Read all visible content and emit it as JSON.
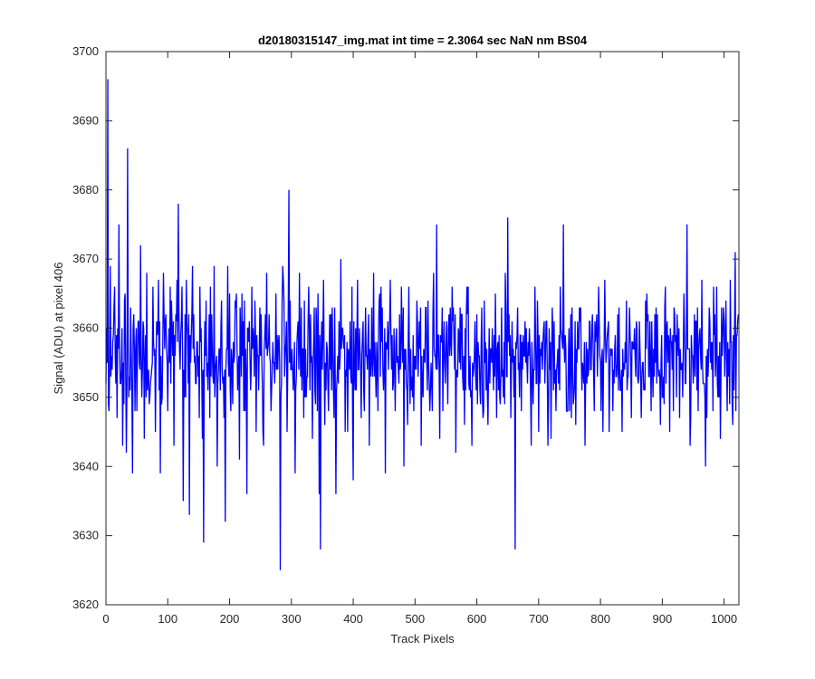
{
  "chart_data": {
    "type": "line",
    "title": "d20180315147_img.mat int time = 2.3064 sec  NaN nm BS04",
    "xlabel": "Track Pixels",
    "ylabel": "Signal (ADU) at pixel 406",
    "xlim": [
      0,
      1024
    ],
    "ylim": [
      3620,
      3700
    ],
    "xticks": [
      0,
      100,
      200,
      300,
      400,
      500,
      600,
      700,
      800,
      900,
      1000
    ],
    "yticks": [
      3620,
      3630,
      3640,
      3650,
      3660,
      3670,
      3680,
      3690,
      3700
    ],
    "grid": false,
    "box": true,
    "series": [
      {
        "color": "#0000ff",
        "n_points": 1024,
        "mean": 3656,
        "anchors": [
          [
            0,
            3652
          ],
          [
            1,
            3660
          ],
          [
            3,
            3696
          ],
          [
            5,
            3648
          ],
          [
            7,
            3669
          ],
          [
            10,
            3654
          ],
          [
            14,
            3666
          ],
          [
            18,
            3647
          ],
          [
            21,
            3675
          ],
          [
            24,
            3652
          ],
          [
            27,
            3643
          ],
          [
            30,
            3664
          ],
          [
            33,
            3642
          ],
          [
            35,
            3686
          ],
          [
            37,
            3650
          ],
          [
            40,
            3663
          ],
          [
            43,
            3639
          ],
          [
            46,
            3657
          ],
          [
            50,
            3648
          ],
          [
            56,
            3672
          ],
          [
            62,
            3644
          ],
          [
            66,
            3668
          ],
          [
            71,
            3650
          ],
          [
            76,
            3666
          ],
          [
            80,
            3645
          ],
          [
            85,
            3667
          ],
          [
            88,
            3639
          ],
          [
            93,
            3668
          ],
          [
            100,
            3648
          ],
          [
            104,
            3666
          ],
          [
            110,
            3643
          ],
          [
            114,
            3661
          ],
          [
            117,
            3678
          ],
          [
            120,
            3654
          ],
          [
            125,
            3635
          ],
          [
            130,
            3667
          ],
          [
            135,
            3633
          ],
          [
            140,
            3669
          ],
          [
            145,
            3652
          ],
          [
            152,
            3666
          ],
          [
            156,
            3644
          ],
          [
            158,
            3629
          ],
          [
            162,
            3664
          ],
          [
            168,
            3647
          ],
          [
            175,
            3669
          ],
          [
            180,
            3640
          ],
          [
            187,
            3664
          ],
          [
            193,
            3632
          ],
          [
            197,
            3669
          ],
          [
            202,
            3648
          ],
          [
            210,
            3663
          ],
          [
            216,
            3641
          ],
          [
            220,
            3665
          ],
          [
            228,
            3636
          ],
          [
            236,
            3666
          ],
          [
            243,
            3645
          ],
          [
            249,
            3663
          ],
          [
            255,
            3643
          ],
          [
            260,
            3668
          ],
          [
            267,
            3648
          ],
          [
            275,
            3665
          ],
          [
            282,
            3625
          ],
          [
            287,
            3667
          ],
          [
            293,
            3645
          ],
          [
            296,
            3680
          ],
          [
            300,
            3654
          ],
          [
            306,
            3639
          ],
          [
            313,
            3668
          ],
          [
            320,
            3647
          ],
          [
            328,
            3666
          ],
          [
            334,
            3644
          ],
          [
            340,
            3663
          ],
          [
            345,
            3636
          ],
          [
            347,
            3628
          ],
          [
            352,
            3667
          ],
          [
            360,
            3648
          ],
          [
            366,
            3663
          ],
          [
            372,
            3636
          ],
          [
            380,
            3670
          ],
          [
            387,
            3645
          ],
          [
            395,
            3661
          ],
          [
            400,
            3638
          ],
          [
            407,
            3667
          ],
          [
            413,
            3647
          ],
          [
            420,
            3663
          ],
          [
            426,
            3643
          ],
          [
            433,
            3668
          ],
          [
            440,
            3648
          ],
          [
            447,
            3663
          ],
          [
            452,
            3639
          ],
          [
            460,
            3667
          ],
          [
            468,
            3648
          ],
          [
            475,
            3662
          ],
          [
            482,
            3640
          ],
          [
            490,
            3666
          ],
          [
            498,
            3648
          ],
          [
            504,
            3661
          ],
          [
            510,
            3643
          ],
          [
            517,
            3663
          ],
          [
            524,
            3648
          ],
          [
            530,
            3668
          ],
          [
            535,
            3675
          ],
          [
            540,
            3644
          ],
          [
            547,
            3661
          ],
          [
            553,
            3649
          ],
          [
            560,
            3666
          ],
          [
            566,
            3642
          ],
          [
            573,
            3663
          ],
          [
            580,
            3646
          ],
          [
            586,
            3666
          ],
          [
            592,
            3643
          ],
          [
            600,
            3662
          ],
          [
            606,
            3649
          ],
          [
            612,
            3664
          ],
          [
            618,
            3646
          ],
          [
            625,
            3660
          ],
          [
            632,
            3647
          ],
          [
            640,
            3663
          ],
          [
            645,
            3649
          ],
          [
            650,
            3676
          ],
          [
            655,
            3647
          ],
          [
            662,
            3628
          ],
          [
            666,
            3663
          ],
          [
            672,
            3648
          ],
          [
            680,
            3660
          ],
          [
            688,
            3643
          ],
          [
            694,
            3666
          ],
          [
            700,
            3645
          ],
          [
            708,
            3660
          ],
          [
            715,
            3643
          ],
          [
            722,
            3663
          ],
          [
            728,
            3648
          ],
          [
            735,
            3666
          ],
          [
            740,
            3675
          ],
          [
            745,
            3648
          ],
          [
            752,
            3662
          ],
          [
            760,
            3646
          ],
          [
            768,
            3663
          ],
          [
            775,
            3643
          ],
          [
            782,
            3661
          ],
          [
            790,
            3648
          ],
          [
            797,
            3666
          ],
          [
            804,
            3645
          ],
          [
            812,
            3660
          ],
          [
            820,
            3648
          ],
          [
            828,
            3662
          ],
          [
            835,
            3645
          ],
          [
            842,
            3664
          ],
          [
            850,
            3647
          ],
          [
            858,
            3661
          ],
          [
            866,
            3647
          ],
          [
            875,
            3665
          ],
          [
            882,
            3648
          ],
          [
            890,
            3663
          ],
          [
            897,
            3646
          ],
          [
            905,
            3666
          ],
          [
            912,
            3645
          ],
          [
            920,
            3662
          ],
          [
            928,
            3647
          ],
          [
            935,
            3665
          ],
          [
            940,
            3675
          ],
          [
            945,
            3643
          ],
          [
            952,
            3662
          ],
          [
            958,
            3648
          ],
          [
            964,
            3667
          ],
          [
            970,
            3640
          ],
          [
            976,
            3663
          ],
          [
            982,
            3648
          ],
          [
            988,
            3666
          ],
          [
            994,
            3644
          ],
          [
            1000,
            3661
          ],
          [
            1005,
            3648
          ],
          [
            1010,
            3667
          ],
          [
            1014,
            3646
          ],
          [
            1018,
            3671
          ],
          [
            1021,
            3659
          ],
          [
            1023,
            3662
          ]
        ]
      }
    ]
  }
}
